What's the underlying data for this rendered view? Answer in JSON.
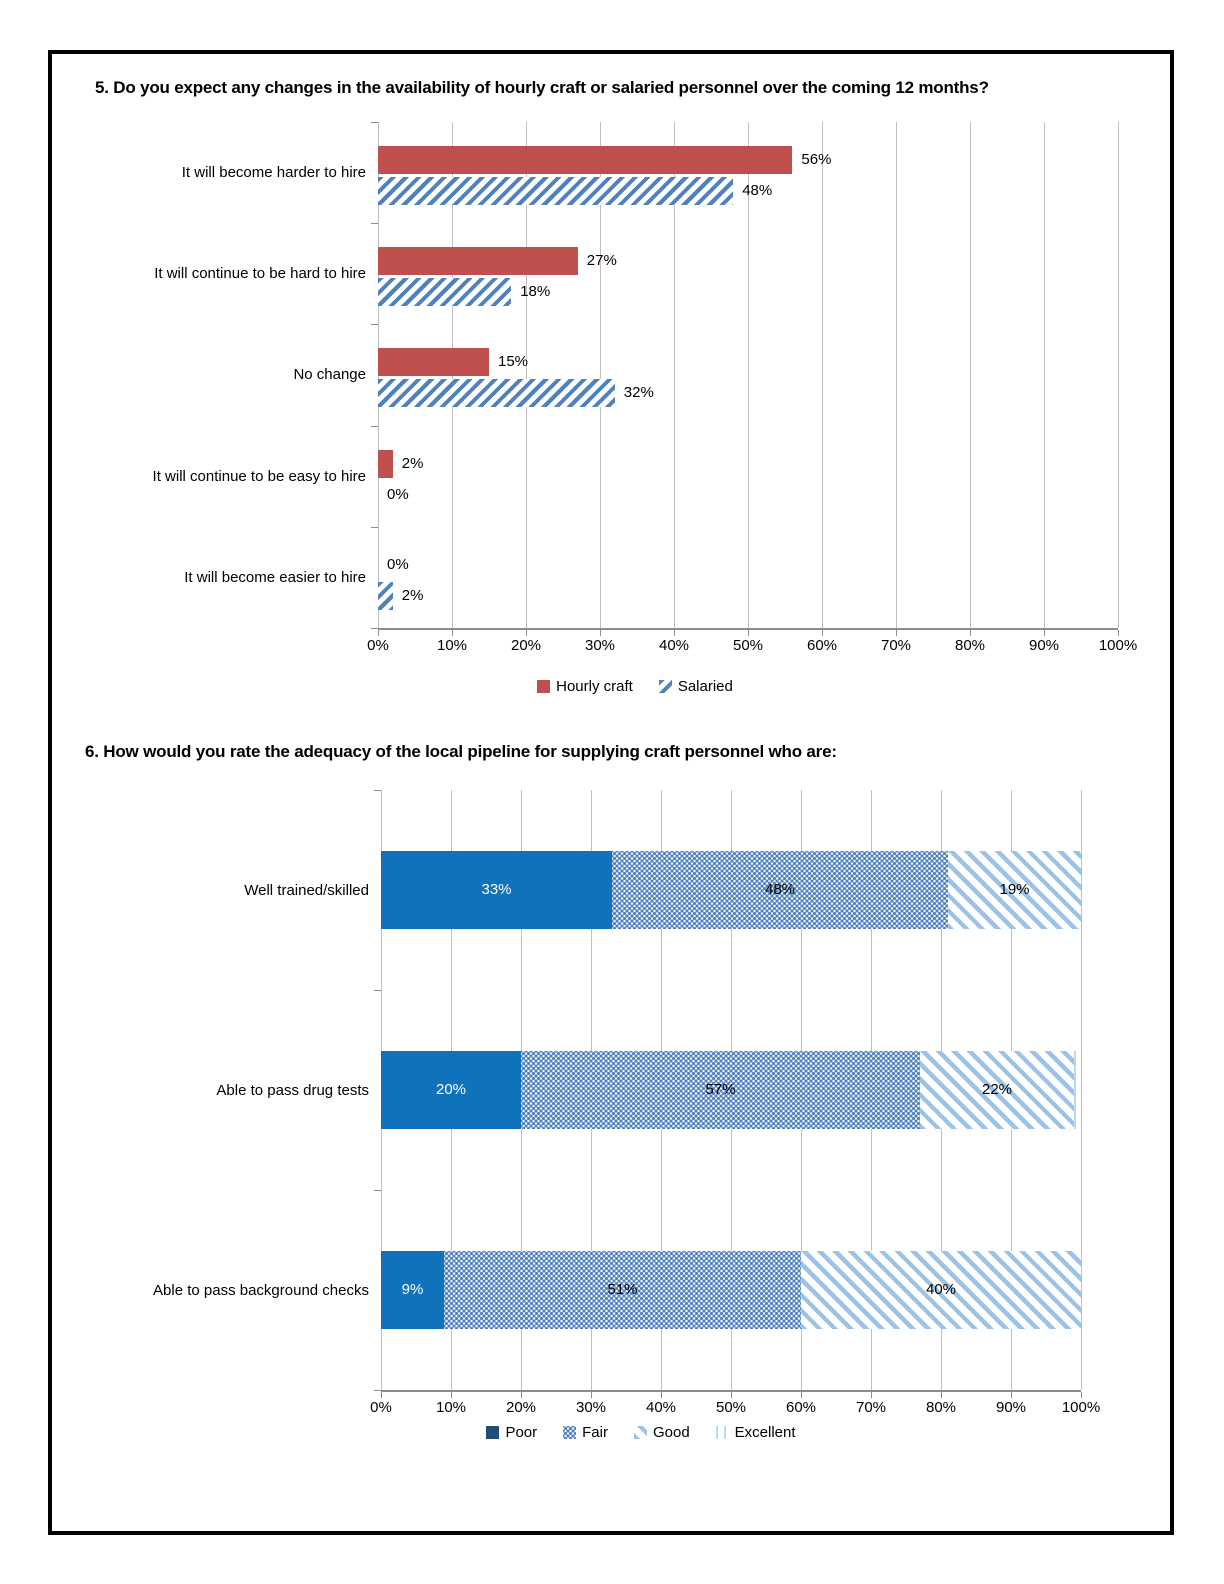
{
  "colors": {
    "hourly_craft_red": "#C0504D",
    "salaried_hatch_blue": "#4F81BD",
    "poor_bar_blue": "#1072BA",
    "poor_legend_blue": "#1F4E79",
    "fair_dot_blue": "#4E81BD",
    "good_hatch_blue": "#9CC2E5",
    "excellent_line_blue": "#BDD7EE",
    "gridline_gray": "#BFBFBF",
    "axis_gray": "#8C8C8C",
    "page_border": "#000000"
  },
  "chart_data": [
    {
      "type": "bar",
      "orientation": "horizontal",
      "grouped": true,
      "title": "5. Do you expect any changes in the availability of hourly craft or salaried personnel over the coming 12 months?",
      "categories": [
        "It will become harder to hire",
        "It will continue to be hard to hire",
        "No change",
        "It will continue to be easy to hire",
        "It will become easier to hire"
      ],
      "series": [
        {
          "name": "Hourly craft",
          "pattern": "solid",
          "color": "#C0504D",
          "values": [
            56,
            27,
            15,
            2,
            0
          ]
        },
        {
          "name": "Salaried",
          "pattern": "diagonal-hatch-forward",
          "color": "#4F81BD",
          "values": [
            48,
            18,
            32,
            0,
            2
          ]
        }
      ],
      "value_label_format": "percent",
      "xlim": [
        0,
        100
      ],
      "x_ticks": [
        "0%",
        "10%",
        "20%",
        "30%",
        "40%",
        "50%",
        "60%",
        "70%",
        "80%",
        "90%",
        "100%"
      ],
      "grid": true,
      "legend_position": "bottom"
    },
    {
      "type": "bar",
      "orientation": "horizontal",
      "stacked": true,
      "title": "6. How would you rate the adequacy of the local pipeline for supplying craft personnel who are:",
      "categories": [
        "Well trained/skilled",
        "Able to pass drug tests",
        "Able to pass background checks"
      ],
      "series": [
        {
          "name": "Poor",
          "pattern": "solid",
          "color": "#1072BA",
          "legend_color": "#1F4E79",
          "label_color": "#FFFFFF",
          "values": [
            33,
            20,
            9
          ]
        },
        {
          "name": "Fair",
          "pattern": "dotted-grid",
          "color": "#4E81BD",
          "label_color": "#000000",
          "values": [
            48,
            57,
            51
          ]
        },
        {
          "name": "Good",
          "pattern": "diagonal-hatch-back",
          "color": "#9CC2E5",
          "label_color": "#000000",
          "values": [
            19,
            22,
            40
          ]
        },
        {
          "name": "Excellent",
          "pattern": "vertical-lines",
          "color": "#BDD7EE",
          "label_color": "#000000",
          "values": [
            0,
            1,
            0
          ]
        }
      ],
      "value_label_format": "percent",
      "min_label_value": 2,
      "xlim": [
        0,
        100
      ],
      "x_ticks": [
        "0%",
        "10%",
        "20%",
        "30%",
        "40%",
        "50%",
        "60%",
        "70%",
        "80%",
        "90%",
        "100%"
      ],
      "grid": true,
      "legend_position": "bottom"
    }
  ]
}
